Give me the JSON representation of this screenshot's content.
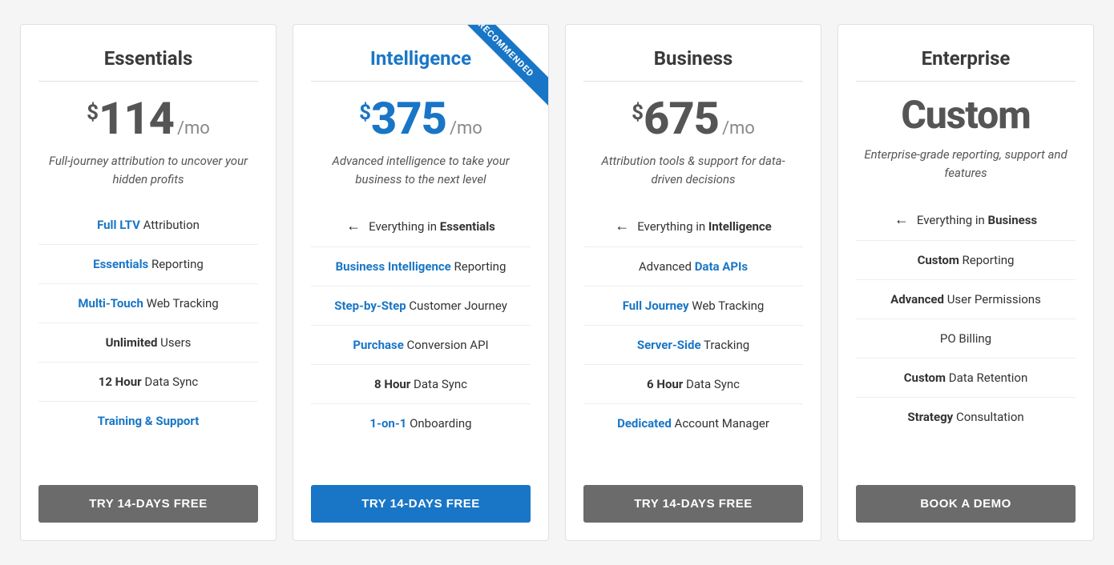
{
  "colors": {
    "page_bg": "#f5f5f5",
    "card_bg": "#ffffff",
    "card_border": "#e0e0e0",
    "accent_blue": "#1976c6",
    "text_dark": "#3a3a3a",
    "text_price": "#555555",
    "text_muted": "#888888",
    "btn_gray": "#6b6b6b",
    "divider": "#eeeeee"
  },
  "ribbon_label": "RECOMMENDED",
  "plans": [
    {
      "name": "Essentials",
      "highlight": false,
      "currency": "$",
      "price": "114",
      "period": "/mo",
      "desc": "Full-journey attribution to uncover your hidden profits",
      "inherit": null,
      "features": [
        {
          "blue": "Full LTV",
          "rest": " Attribution"
        },
        {
          "blue": "Essentials",
          "rest": " Reporting"
        },
        {
          "blue": "Multi-Touch",
          "rest": " Web Tracking"
        },
        {
          "bold": "Unlimited",
          "rest": " Users"
        },
        {
          "bold": "12 Hour",
          "rest": " Data Sync"
        },
        {
          "blue": "Training & Support",
          "rest": ""
        }
      ],
      "cta": "TRY 14-DAYS FREE",
      "cta_style": "gray"
    },
    {
      "name": "Intelligence",
      "highlight": true,
      "ribbon": true,
      "currency": "$",
      "price": "375",
      "period": "/mo",
      "desc": "Advanced intelligence to take your business to the next level",
      "inherit": {
        "prefix": "Everything in ",
        "bold": "Essentials"
      },
      "features": [
        {
          "blue": "Business Intelligence",
          "rest": " Reporting"
        },
        {
          "blue": "Step-by-Step",
          "rest": " Customer Journey"
        },
        {
          "blue": "Purchase",
          "rest": " Conversion API"
        },
        {
          "bold": "8 Hour",
          "rest": " Data Sync"
        },
        {
          "blue": "1-on-1",
          "rest": " Onboarding"
        }
      ],
      "cta": "TRY 14-DAYS FREE",
      "cta_style": "blue"
    },
    {
      "name": "Business",
      "highlight": false,
      "currency": "$",
      "price": "675",
      "period": "/mo",
      "desc": "Attribution tools & support for data-driven decisions",
      "inherit": {
        "prefix": "Everything in ",
        "bold": "Intelligence"
      },
      "features": [
        {
          "pre": "Advanced ",
          "blue": "Data APIs",
          "rest": ""
        },
        {
          "blue": "Full Journey",
          "rest": " Web Tracking"
        },
        {
          "blue": "Server-Side",
          "rest": " Tracking"
        },
        {
          "bold": "6 Hour",
          "rest": " Data Sync"
        },
        {
          "blue": "Dedicated",
          "rest": " Account Manager"
        }
      ],
      "cta": "TRY 14-DAYS FREE",
      "cta_style": "gray"
    },
    {
      "name": "Enterprise",
      "highlight": false,
      "custom_price": "Custom",
      "desc": "Enterprise-grade reporting, support and features",
      "inherit": {
        "prefix": "Everything in ",
        "bold": "Business"
      },
      "features": [
        {
          "bold": "Custom",
          "rest": " Reporting"
        },
        {
          "bold": "Advanced",
          "rest": " User Permissions"
        },
        {
          "rest": "PO Billing"
        },
        {
          "bold": "Custom",
          "rest": " Data Retention"
        },
        {
          "bold": "Strategy",
          "rest": " Consultation"
        }
      ],
      "cta": "BOOK A DEMO",
      "cta_style": "gray"
    }
  ]
}
